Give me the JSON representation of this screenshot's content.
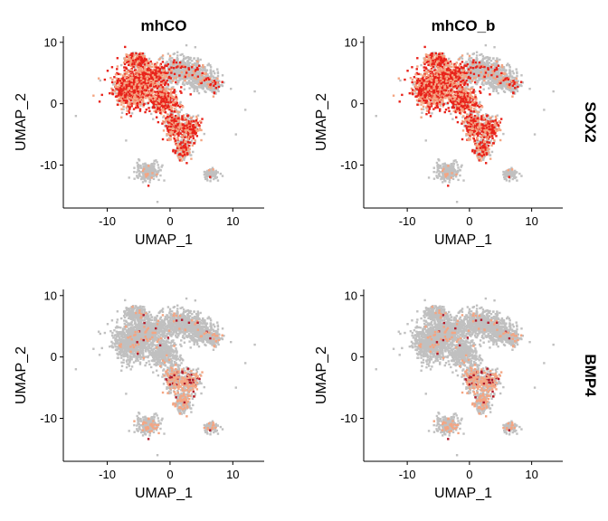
{
  "figure": {
    "columns": [
      "mhCO",
      "mhCO_b"
    ],
    "rows": [
      "SOX2",
      "BMP4"
    ]
  },
  "colors": {
    "background_cells": "#c0c0c0",
    "low_expression": "#f4a582",
    "high_expression": "#e8221a",
    "max_expression": "#b2182b"
  },
  "chart_data": [
    {
      "type": "scatter",
      "title": "mhCO",
      "row_label": "",
      "gene": "SOX2",
      "xlabel": "UMAP_1",
      "ylabel": "UMAP_2",
      "xlim": [
        -17,
        15
      ],
      "ylim": [
        -17,
        11
      ],
      "xticks": [
        -10,
        0,
        10
      ],
      "yticks": [
        -10,
        0,
        10
      ],
      "xtick_labels": [
        "-10",
        "0",
        "10"
      ],
      "ytick_labels": [
        "-10",
        "0",
        "10"
      ],
      "highlight": "high",
      "expression_pattern": "strong in left lobe (x -8 to 2, y -5 to 5) and lower branch toward (2,-9)"
    },
    {
      "type": "scatter",
      "title": "mhCO_b",
      "row_label": "SOX2",
      "gene": "SOX2",
      "xlabel": "UMAP_1",
      "ylabel": "UMAP_2",
      "xlim": [
        -17,
        15
      ],
      "ylim": [
        -17,
        11
      ],
      "xticks": [
        -10,
        0,
        10
      ],
      "yticks": [
        -10,
        0,
        10
      ],
      "xtick_labels": [
        "-10",
        "0",
        "10"
      ],
      "ytick_labels": [
        "-10",
        "0",
        "10"
      ],
      "highlight": "high",
      "expression_pattern": "strong in left lobe, moderate in lower branch"
    },
    {
      "type": "scatter",
      "title": "",
      "row_label": "",
      "gene": "BMP4",
      "xlabel": "UMAP_1",
      "ylabel": "UMAP_2",
      "xlim": [
        -17,
        15
      ],
      "ylim": [
        -17,
        11
      ],
      "xticks": [
        -10,
        0,
        10
      ],
      "yticks": [
        -10,
        0,
        10
      ],
      "xtick_labels": [
        "-10",
        "0",
        "10"
      ],
      "ytick_labels": [
        "-10",
        "0",
        "10"
      ],
      "highlight": "low",
      "expression_pattern": "sparse, mainly along lower branch"
    },
    {
      "type": "scatter",
      "title": "",
      "row_label": "BMP4",
      "gene": "BMP4",
      "xlabel": "UMAP_1",
      "ylabel": "UMAP_2",
      "xlim": [
        -17,
        15
      ],
      "ylim": [
        -17,
        11
      ],
      "xticks": [
        -10,
        0,
        10
      ],
      "yticks": [
        -10,
        0,
        10
      ],
      "xtick_labels": [
        "-10",
        "0",
        "10"
      ],
      "ytick_labels": [
        "-10",
        "0",
        "10"
      ],
      "highlight": "low",
      "expression_pattern": "sparse, mainly along lower branch and bottom clusters"
    }
  ]
}
